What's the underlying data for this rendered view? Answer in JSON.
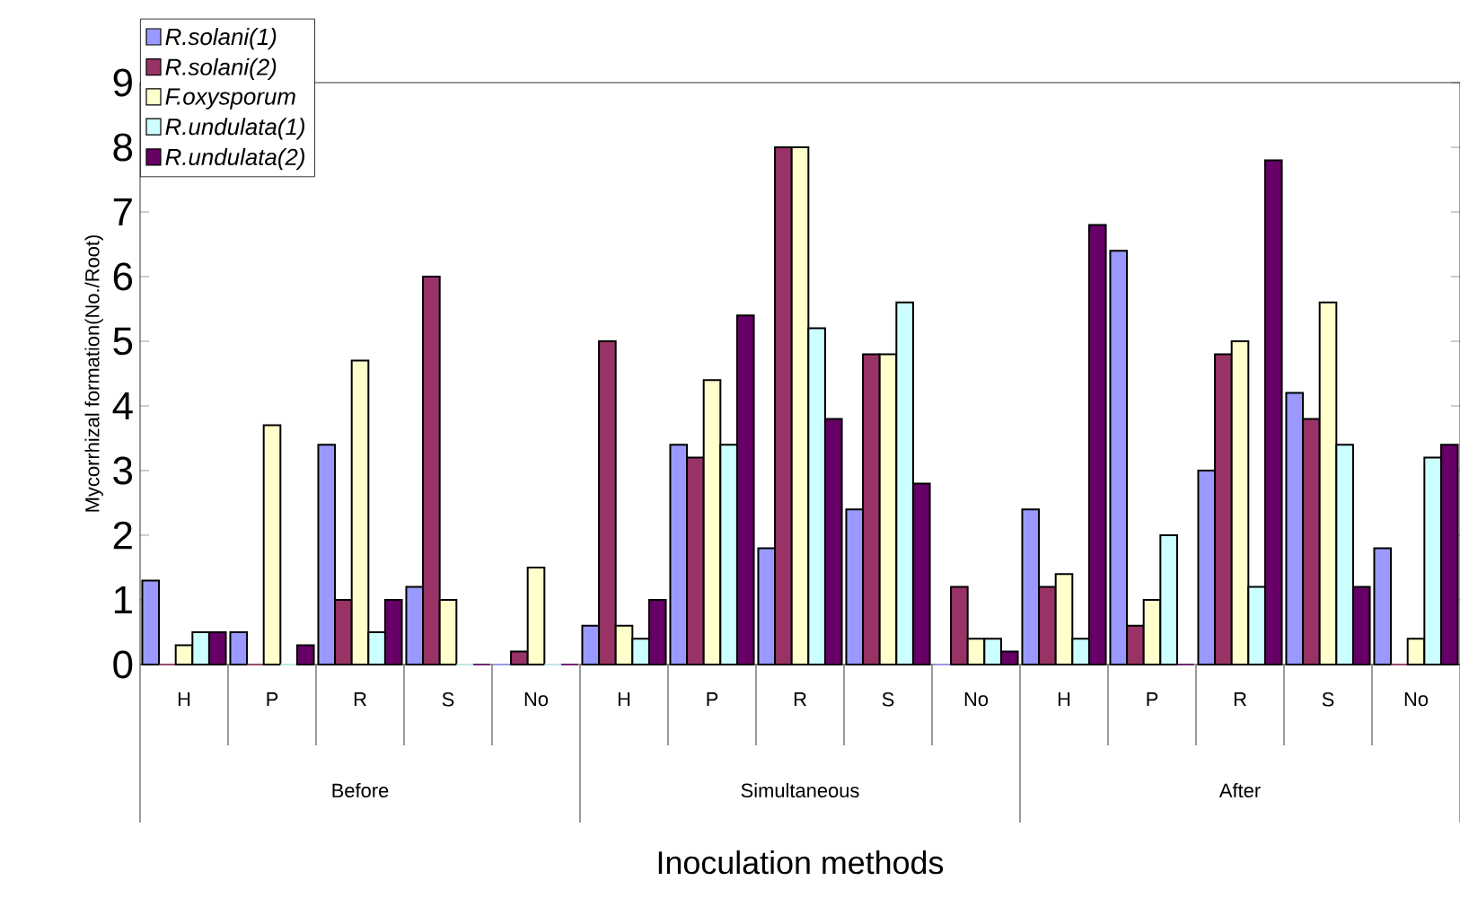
{
  "chart_data": {
    "type": "bar",
    "xlabel": "Inoculation methods",
    "ylabel": "Mycorrhizal formation(No./Root)",
    "categories": [
      "H",
      "P",
      "R",
      "S",
      "No",
      "H",
      "P",
      "R",
      "S",
      "No",
      "H",
      "P",
      "R",
      "S",
      "No"
    ],
    "annotations": [
      "Before",
      "Simultaneous",
      "After"
    ],
    "series": [
      {
        "name": "R.solani(1)",
        "color": "#9999ff",
        "values": [
          1.3,
          0.5,
          3.4,
          1.2,
          0,
          0.6,
          3.4,
          1.8,
          2.4,
          0,
          2.4,
          6.4,
          3.0,
          4.2,
          1.8
        ]
      },
      {
        "name": "R.solani(2)",
        "color": "#993366",
        "values": [
          0,
          0,
          1.0,
          6.0,
          0.2,
          5.0,
          3.2,
          8.0,
          4.8,
          1.2,
          1.2,
          0.6,
          4.8,
          3.8,
          0
        ]
      },
      {
        "name": "F.oxysporum",
        "color": "#ffffcc",
        "values": [
          0.3,
          3.7,
          4.7,
          1.0,
          1.5,
          0.6,
          4.4,
          8.0,
          4.8,
          0.4,
          1.4,
          1.0,
          5.0,
          5.6,
          0.4
        ]
      },
      {
        "name": "R.undulata(1)",
        "color": "#ccffff",
        "values": [
          0.5,
          0,
          0.5,
          0,
          0,
          0.4,
          3.4,
          5.2,
          5.6,
          0.4,
          0.4,
          2.0,
          1.2,
          3.4,
          3.2
        ]
      },
      {
        "name": "R.undulata(2)",
        "color": "#660066",
        "values": [
          0.5,
          0.3,
          1.0,
          0,
          0,
          1.0,
          5.4,
          3.8,
          2.8,
          0.2,
          6.8,
          0,
          7.8,
          1.2,
          3.4
        ]
      }
    ],
    "ylim": [
      0,
      9
    ],
    "yticks": [
      0,
      1,
      2,
      3,
      4,
      5,
      6,
      7,
      8,
      9
    ],
    "legend": "top left"
  }
}
